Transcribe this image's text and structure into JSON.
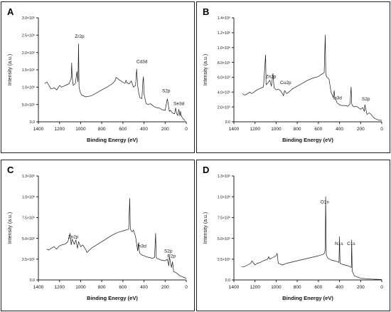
{
  "figure": {
    "colors": {
      "line": "#1a1a1a",
      "axis": "#222222",
      "border": "#222222"
    }
  },
  "panels": [
    {
      "label": "A"
    },
    {
      "label": "B"
    },
    {
      "label": "C"
    },
    {
      "label": "D"
    }
  ],
  "chart_data": [
    {
      "panel": "A",
      "type": "line",
      "xlabel": "Binding Energy (eV)",
      "ylabel": "Intensity (a.u.)",
      "xlim": [
        1400,
        0
      ],
      "ylim": [
        0,
        3000000
      ],
      "x_ticks": [
        1400,
        1200,
        1000,
        800,
        600,
        400,
        200,
        0
      ],
      "y_ticks": [
        0,
        500000,
        1000000,
        1500000,
        2000000,
        2500000,
        3000000
      ],
      "y_tick_labels": [
        "0.0",
        "5.0×10⁵",
        "1.0×10⁶",
        "1.5×10⁶",
        "2.0×10⁶",
        "2.5×10⁶",
        "3.0×10⁶"
      ],
      "annotations": [
        {
          "text": "Zr2p",
          "x": 1010,
          "y": 2420000
        },
        {
          "text": "Cd3d",
          "x": 420,
          "y": 1700000
        },
        {
          "text": "S2p",
          "x": 190,
          "y": 850000
        },
        {
          "text": "Se3d",
          "x": 70,
          "y": 480000
        }
      ],
      "series": [
        {
          "x": [
            1340,
            1320,
            1280,
            1250,
            1225,
            1200,
            1180,
            1160,
            1110,
            1090,
            1085,
            1080,
            1070,
            1050,
            1035,
            1025,
            1020,
            1015,
            1005,
            990,
            950,
            900,
            850,
            800,
            750,
            700,
            670,
            665,
            650,
            640,
            630,
            600,
            580,
            570,
            560,
            540,
            520,
            500,
            480,
            470,
            460,
            450,
            440,
            420,
            410,
            405,
            400,
            380,
            360,
            340,
            300,
            270,
            250,
            230,
            200,
            180,
            175,
            160,
            150,
            130,
            110,
            100,
            90,
            80,
            70,
            60,
            54,
            50,
            40,
            20,
            10
          ],
          "y": [
            1100000,
            1150000,
            950000,
            980000,
            920000,
            1050000,
            1000000,
            1030000,
            1100000,
            1250000,
            1700000,
            1300000,
            1050000,
            1100000,
            1450000,
            1150000,
            2250000,
            1000000,
            860000,
            770000,
            720000,
            750000,
            830000,
            920000,
            1000000,
            1100000,
            1200000,
            1280000,
            1250000,
            1220000,
            1200000,
            1140000,
            1110000,
            1200000,
            1120000,
            1100000,
            1180000,
            1000000,
            1050000,
            1520000,
            1030000,
            850000,
            700000,
            670000,
            1200000,
            1300000,
            800000,
            520000,
            500000,
            520000,
            430000,
            400000,
            390000,
            350000,
            330000,
            660000,
            600000,
            300000,
            330000,
            250000,
            230000,
            400000,
            230000,
            180000,
            360000,
            170000,
            300000,
            200000,
            130000,
            60000,
            30000
          ]
        }
      ]
    },
    {
      "panel": "B",
      "type": "line",
      "xlabel": "Binding Energy (eV)",
      "ylabel": "Intensity (a.u.)",
      "xlim": [
        1400,
        0
      ],
      "ylim": [
        0,
        1400000
      ],
      "x_ticks": [
        1400,
        1200,
        1000,
        800,
        600,
        400,
        200,
        0
      ],
      "y_ticks": [
        0,
        200000,
        400000,
        600000,
        800000,
        1000000,
        1200000,
        1400000
      ],
      "y_tick_labels": [
        "0.0",
        "2.0×10⁵",
        "4.0×10⁵",
        "6.0×10⁵",
        "8.0×10⁵",
        "1.0×10⁶",
        "1.2×10⁶",
        "1.4×10⁶"
      ],
      "annotations": [
        {
          "text": "Zn2p",
          "x": 1050,
          "y": 590000
        },
        {
          "text": "Cu2p",
          "x": 910,
          "y": 510000
        },
        {
          "text": "In3d",
          "x": 420,
          "y": 300000
        },
        {
          "text": "S2p",
          "x": 150,
          "y": 290000
        }
      ],
      "series": [
        {
          "x": [
            1320,
            1300,
            1280,
            1250,
            1230,
            1200,
            1180,
            1150,
            1120,
            1100,
            1095,
            1080,
            1060,
            1045,
            1030,
            1020,
            1000,
            980,
            960,
            950,
            940,
            930,
            920,
            900,
            870,
            850,
            800,
            750,
            700,
            650,
            600,
            570,
            545,
            535,
            530,
            525,
            520,
            510,
            500,
            480,
            460,
            450,
            445,
            440,
            420,
            400,
            380,
            350,
            320,
            300,
            290,
            285,
            280,
            260,
            240,
            200,
            180,
            165,
            160,
            140,
            120,
            100,
            80,
            60,
            40,
            20,
            0
          ],
          "y": [
            380000,
            360000,
            370000,
            400000,
            380000,
            410000,
            430000,
            450000,
            470000,
            900000,
            500000,
            520000,
            560000,
            480000,
            650000,
            460000,
            430000,
            440000,
            420000,
            400000,
            380000,
            350000,
            420000,
            380000,
            410000,
            440000,
            480000,
            520000,
            560000,
            590000,
            610000,
            640000,
            660000,
            1170000,
            640000,
            620000,
            600000,
            590000,
            580000,
            400000,
            330000,
            420000,
            330000,
            310000,
            250000,
            230000,
            220000,
            220000,
            210000,
            240000,
            470000,
            250000,
            220000,
            200000,
            210000,
            170000,
            190000,
            140000,
            230000,
            100000,
            120000,
            100000,
            60000,
            40000,
            30000,
            20000,
            20000
          ]
        }
      ]
    },
    {
      "panel": "C",
      "type": "line",
      "xlabel": "Binding Energy (eV)",
      "ylabel": "Intensity (a.u.)",
      "xlim": [
        1400,
        0
      ],
      "ylim": [
        0,
        1250000
      ],
      "x_ticks": [
        1400,
        1200,
        1000,
        800,
        600,
        400,
        200,
        0
      ],
      "y_ticks": [
        0,
        250000,
        500000,
        750000,
        1000000,
        1250000
      ],
      "y_tick_labels": [
        "0.0",
        "2.5×10⁵",
        "5.0×10⁵",
        "7.5×10⁵",
        "1.0×10⁶",
        "1.3×10⁶"
      ],
      "annotations": [
        {
          "text": "Zn2p",
          "x": 1070,
          "y": 500000
        },
        {
          "text": "In3d",
          "x": 420,
          "y": 390000
        },
        {
          "text": "S2p",
          "x": 170,
          "y": 330000
        },
        {
          "text": "P2p",
          "x": 140,
          "y": 270000
        }
      ],
      "series": [
        {
          "x": [
            1320,
            1300,
            1280,
            1250,
            1230,
            1200,
            1180,
            1150,
            1120,
            1100,
            1090,
            1080,
            1060,
            1045,
            1030,
            1020,
            1000,
            980,
            960,
            950,
            940,
            900,
            850,
            800,
            750,
            700,
            650,
            600,
            570,
            545,
            535,
            530,
            525,
            520,
            510,
            500,
            480,
            460,
            450,
            445,
            440,
            420,
            400,
            380,
            350,
            320,
            300,
            290,
            285,
            280,
            260,
            240,
            200,
            180,
            165,
            160,
            140,
            130,
            120,
            100,
            80,
            60,
            40,
            20,
            0
          ],
          "y": [
            370000,
            360000,
            380000,
            400000,
            370000,
            410000,
            420000,
            430000,
            460000,
            560000,
            420000,
            490000,
            430000,
            480000,
            380000,
            460000,
            400000,
            420000,
            380000,
            360000,
            330000,
            380000,
            420000,
            460000,
            500000,
            540000,
            570000,
            590000,
            600000,
            610000,
            980000,
            620000,
            600000,
            590000,
            580000,
            600000,
            520000,
            350000,
            450000,
            350000,
            320000,
            300000,
            290000,
            280000,
            270000,
            260000,
            270000,
            560000,
            280000,
            260000,
            250000,
            240000,
            230000,
            250000,
            170000,
            280000,
            150000,
            220000,
            100000,
            90000,
            70000,
            50000,
            40000,
            30000,
            20000
          ]
        }
      ]
    },
    {
      "panel": "D",
      "type": "line",
      "xlabel": "Binding Energy (eV)",
      "ylabel": "Intensity (a.u.)",
      "xlim": [
        1400,
        0
      ],
      "ylim": [
        0,
        1250000
      ],
      "x_ticks": [
        1400,
        1200,
        1000,
        800,
        600,
        400,
        200,
        0
      ],
      "y_ticks": [
        0,
        250000,
        500000,
        750000,
        1000000,
        1250000
      ],
      "y_tick_labels": [
        "0.0",
        "2.5×10⁵",
        "5.0×10⁵",
        "7.5×10⁵",
        "1.0×10⁶",
        "1.3×10⁶"
      ],
      "annotations": [
        {
          "text": "O1s",
          "x": 540,
          "y": 920000
        },
        {
          "text": "N1s",
          "x": 405,
          "y": 420000
        },
        {
          "text": "C1s",
          "x": 290,
          "y": 420000
        }
      ],
      "series": [
        {
          "x": [
            1330,
            1300,
            1270,
            1240,
            1230,
            1200,
            1180,
            1150,
            1120,
            1080,
            1070,
            1060,
            1030,
            1000,
            990,
            980,
            960,
            940,
            900,
            800,
            700,
            600,
            550,
            540,
            535,
            531,
            525,
            510,
            480,
            450,
            420,
            405,
            400,
            395,
            380,
            350,
            320,
            300,
            288,
            285,
            280,
            260,
            200,
            150,
            100,
            50,
            0
          ],
          "y": [
            160000,
            160000,
            180000,
            200000,
            230000,
            180000,
            200000,
            210000,
            230000,
            250000,
            280000,
            250000,
            270000,
            290000,
            320000,
            200000,
            190000,
            180000,
            200000,
            230000,
            260000,
            290000,
            310000,
            330000,
            380000,
            1000000,
            300000,
            260000,
            240000,
            230000,
            220000,
            210000,
            520000,
            200000,
            190000,
            180000,
            170000,
            160000,
            150000,
            480000,
            110000,
            50000,
            20000,
            15000,
            10000,
            8000,
            5000
          ]
        }
      ]
    }
  ]
}
